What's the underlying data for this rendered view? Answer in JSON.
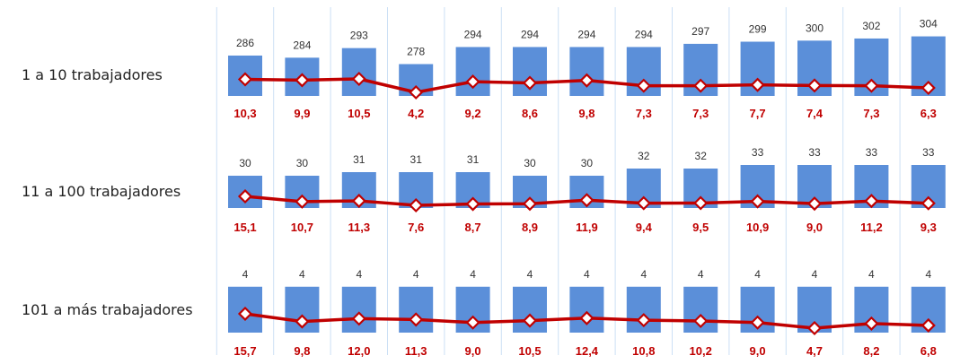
{
  "colors": {
    "bar": "#5B8FD9",
    "line": "#C00000",
    "marker_fill": "#FFFFFF",
    "value_label": "#333333",
    "pct_label": "#C00000",
    "divider": "#CCE0F5"
  },
  "chart_data": [
    {
      "type": "bar",
      "row_label": "1 a 10 trabajadores",
      "bar_values": [
        286,
        284,
        293,
        278,
        294,
        294,
        294,
        294,
        297,
        299,
        300,
        302,
        304
      ],
      "bar_range": [
        270,
        307
      ],
      "line_values": [
        10.3,
        9.9,
        10.5,
        4.2,
        9.2,
        8.6,
        9.8,
        7.3,
        7.3,
        7.7,
        7.4,
        7.3,
        6.3
      ],
      "line_labels": [
        "10,3",
        "9,9",
        "10,5",
        "4,2",
        "9,2",
        "8,6",
        "9,8",
        "7,3",
        "7,3",
        "7,7",
        "7,4",
        "7,3",
        "6,3"
      ]
    },
    {
      "type": "bar",
      "row_label": "11 a 100 trabajadores",
      "bar_values": [
        30,
        30,
        31,
        31,
        31,
        30,
        30,
        32,
        32,
        33,
        33,
        33,
        33
      ],
      "bar_range": [
        27,
        34
      ],
      "line_values": [
        15.1,
        10.7,
        11.3,
        7.6,
        8.7,
        8.9,
        11.9,
        9.4,
        9.5,
        10.9,
        9.0,
        11.2,
        9.3
      ],
      "line_labels": [
        "15,1",
        "10,7",
        "11,3",
        "7,6",
        "8,7",
        "8,9",
        "11,9",
        "9,4",
        "9,5",
        "10,9",
        "9,0",
        "11,2",
        "9,3"
      ]
    },
    {
      "type": "bar",
      "row_label": "101 a más trabajadores",
      "bar_values": [
        4,
        4,
        4,
        4,
        4,
        4,
        4,
        4,
        4,
        4,
        4,
        4,
        4
      ],
      "bar_range": [
        0,
        5
      ],
      "line_values": [
        15.7,
        9.8,
        12.0,
        11.3,
        9.0,
        10.5,
        12.4,
        10.8,
        10.2,
        9.0,
        4.7,
        8.2,
        6.8
      ],
      "line_labels": [
        "15,7",
        "9,8",
        "12,0",
        "11,3",
        "9,0",
        "10,5",
        "12,4",
        "10,8",
        "10,2",
        "9,0",
        "4,7",
        "8,2",
        "6,8"
      ]
    }
  ]
}
